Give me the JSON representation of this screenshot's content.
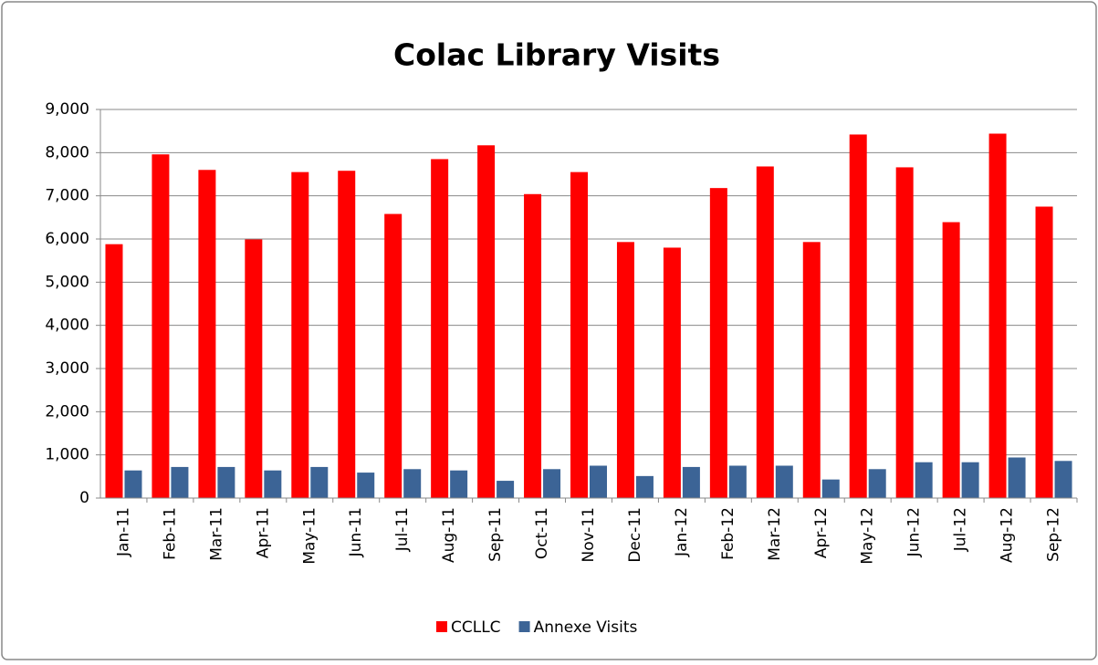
{
  "chart_data": {
    "type": "bar",
    "title": "Colac Library Visits",
    "categories": [
      "Jan-11",
      "Feb-11",
      "Mar-11",
      "Apr-11",
      "May-11",
      "Jun-11",
      "Jul-11",
      "Aug-11",
      "Sep-11",
      "Oct-11",
      "Nov-11",
      "Dec-11",
      "Jan-12",
      "Feb-12",
      "Mar-12",
      "Apr-12",
      "May-12",
      "Jun-12",
      "Jul-12",
      "Aug-12",
      "Sep-12"
    ],
    "series": [
      {
        "name": "CCLLC",
        "color": "#ff0000",
        "values": [
          5880,
          7960,
          7600,
          5990,
          7550,
          7580,
          6580,
          7850,
          8170,
          7040,
          7550,
          5930,
          5800,
          7180,
          7680,
          5930,
          8420,
          7660,
          6390,
          8440,
          6750
        ]
      },
      {
        "name": "Annexe Visits",
        "color": "#3c6496",
        "values": [
          640,
          720,
          720,
          640,
          720,
          590,
          670,
          640,
          400,
          670,
          750,
          510,
          720,
          750,
          750,
          430,
          670,
          830,
          830,
          940,
          860
        ]
      }
    ],
    "ylim": [
      0,
      9000
    ],
    "yticks": [
      0,
      {
        "value": 1000,
        "label": "1,000"
      },
      {
        "value": 2000,
        "label": "2,000"
      },
      {
        "value": 3000,
        "label": "3,000"
      },
      {
        "value": 4000,
        "label": "4,000"
      },
      {
        "value": 5000,
        "label": "5,000"
      },
      {
        "value": 6000,
        "label": "6,000"
      },
      {
        "value": 7000,
        "label": "7,000"
      },
      {
        "value": 8000,
        "label": "8,000"
      },
      {
        "value": 9000,
        "label": "9,000"
      }
    ],
    "grid": true,
    "legend": "bottom"
  }
}
